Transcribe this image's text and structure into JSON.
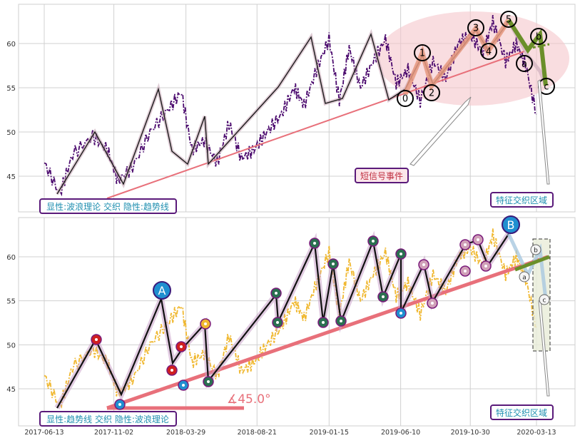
{
  "colors": {
    "price_top": "#4b0a6e",
    "price_bottom": "#f0b830",
    "trend": "#e8707a",
    "wave": "#e89a80",
    "wave_green": "#6b8f2a",
    "ellipse": "#f5c6cc",
    "label_border": "#5a1a7a",
    "label_text_blue": "#1f8fb0",
    "label_text_red": "#c03040",
    "marker_blue": "#1f8fd0",
    "marker_red": "#d02020",
    "grid": "#d0d0d0"
  },
  "x_tick_labels": [
    "2017-06-13",
    "2017-11-02",
    "2018-03-29",
    "2018-08-21",
    "2019-01-15",
    "2019-06-10",
    "2019-10-30",
    "2020-03-13"
  ],
  "top_panel": {
    "y_tick_labels": [
      "45",
      "50",
      "55",
      "60"
    ],
    "caption": "显性:波浪理论 交织 隐性:趋势线",
    "signal_annotation": "短信号事件",
    "region_annotation": "特征交织区域",
    "wave_labels": [
      "0",
      "1",
      "2",
      "3",
      "4",
      "5",
      "a",
      "b",
      "c"
    ]
  },
  "bottom_panel": {
    "y_tick_labels": [
      "45",
      "50",
      "55",
      "60"
    ],
    "caption": "显性:趋势线 交织 隐性:波浪理论",
    "angle_label": "∡45.0°",
    "region_annotation": "特征交织区域",
    "big_markers": [
      "A",
      "B"
    ],
    "wave_labels": [
      "a",
      "b",
      "c"
    ]
  },
  "chart_data": [
    {
      "type": "line",
      "title": "",
      "x_range": [
        "2017-05-20",
        "2020-04-20"
      ],
      "ylim": [
        41,
        64
      ],
      "grid": true,
      "series": [
        {
          "x": [
            "2017-06-13",
            "2017-07-15",
            "2017-08-10",
            "2017-09-20",
            "2017-10-20",
            "2017-11-10",
            "2017-12-10",
            "2018-01-15",
            "2018-02-20",
            "2018-03-20",
            "2018-04-10",
            "2018-05-05",
            "2018-06-01",
            "2018-06-25",
            "2018-07-20",
            "2018-08-15",
            "2018-09-10",
            "2018-10-10",
            "2018-11-05",
            "2018-11-25",
            "2018-12-20",
            "2019-01-15",
            "2019-02-05",
            "2019-02-25",
            "2019-03-20",
            "2019-04-15",
            "2019-05-10",
            "2019-06-01",
            "2019-06-25",
            "2019-07-20",
            "2019-08-15",
            "2019-09-10",
            "2019-10-05",
            "2019-10-30",
            "2019-11-25",
            "2019-12-15",
            "2020-01-10",
            "2020-02-01",
            "2020-02-20",
            "2020-03-13"
          ],
          "values": [
            46.5,
            43.0,
            47.5,
            49.5,
            48.0,
            44.5,
            46.0,
            50.0,
            52.5,
            54.5,
            48.0,
            49.0,
            46.5,
            51.0,
            47.0,
            48.0,
            50.0,
            52.0,
            55.0,
            53.0,
            57.0,
            60.5,
            53.5,
            59.5,
            55.0,
            58.0,
            60.5,
            55.5,
            57.0,
            53.5,
            58.0,
            56.0,
            60.0,
            61.0,
            59.0,
            62.5,
            58.0,
            60.0,
            57.5,
            52.0
          ]
        }
      ]
    },
    {
      "type": "line",
      "title": "",
      "x_range": [
        "2017-05-20",
        "2020-04-20"
      ],
      "ylim": [
        41,
        64
      ],
      "grid": true,
      "series": [
        {
          "x": [
            "2017-06-13",
            "2017-07-15",
            "2017-08-10",
            "2017-09-20",
            "2017-10-20",
            "2017-11-10",
            "2017-12-10",
            "2018-01-15",
            "2018-02-20",
            "2018-03-20",
            "2018-04-10",
            "2018-05-05",
            "2018-06-01",
            "2018-06-25",
            "2018-07-20",
            "2018-08-15",
            "2018-09-10",
            "2018-10-10",
            "2018-11-05",
            "2018-11-25",
            "2018-12-20",
            "2019-01-15",
            "2019-02-05",
            "2019-02-25",
            "2019-03-20",
            "2019-04-15",
            "2019-05-10",
            "2019-06-01",
            "2019-06-25",
            "2019-07-20",
            "2019-08-15",
            "2019-09-10",
            "2019-10-05",
            "2019-10-30",
            "2019-11-25",
            "2019-12-15",
            "2020-01-10",
            "2020-02-01",
            "2020-02-20",
            "2020-03-13"
          ],
          "values": [
            46.5,
            43.0,
            47.5,
            49.5,
            48.0,
            44.5,
            46.0,
            50.0,
            52.5,
            54.5,
            48.0,
            49.0,
            46.5,
            51.0,
            47.0,
            48.0,
            50.0,
            52.0,
            55.0,
            53.0,
            57.0,
            60.5,
            53.5,
            59.5,
            55.0,
            58.0,
            60.5,
            55.5,
            57.0,
            53.5,
            58.0,
            56.0,
            60.0,
            61.0,
            59.0,
            62.5,
            58.0,
            60.0,
            57.5,
            52.0
          ]
        }
      ]
    }
  ]
}
